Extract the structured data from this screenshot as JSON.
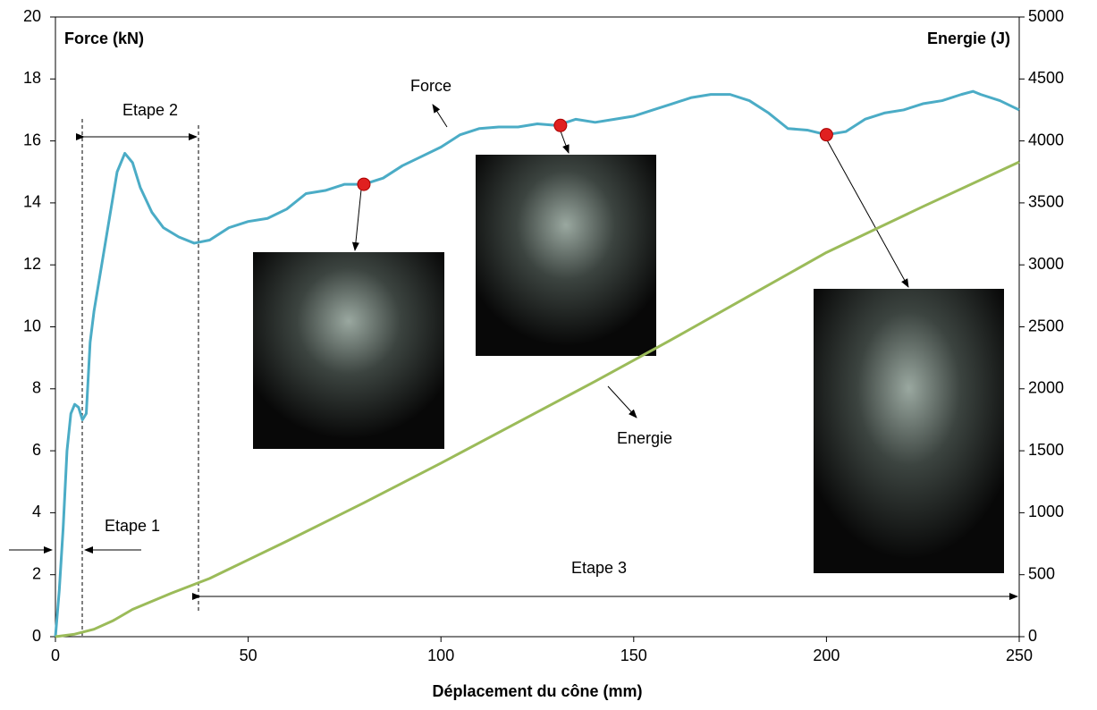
{
  "chart_data": {
    "type": "line",
    "xlabel": "Déplacement du cône (mm)",
    "ylabel": "Force (kN)",
    "y2label": "Energie (J)",
    "xlim": [
      0,
      250
    ],
    "xticks": [
      0,
      50,
      100,
      150,
      200,
      250
    ],
    "ylim": [
      0,
      20
    ],
    "yticks": [
      0,
      2,
      4,
      6,
      8,
      10,
      12,
      14,
      16,
      18,
      20
    ],
    "y2lim": [
      0,
      5000
    ],
    "y2ticks": [
      0,
      500,
      1000,
      1500,
      2000,
      2500,
      3000,
      3500,
      4000,
      4500,
      5000
    ],
    "series": [
      {
        "name": "Force",
        "color": "#4bacc6",
        "axis": "y",
        "x": [
          0,
          1,
          2,
          3,
          4,
          5,
          6,
          7,
          8,
          9,
          10,
          12,
          14,
          16,
          18,
          20,
          22,
          25,
          28,
          32,
          36,
          40,
          45,
          50,
          55,
          60,
          65,
          70,
          75,
          80,
          85,
          90,
          95,
          100,
          105,
          110,
          115,
          120,
          125,
          130,
          135,
          140,
          145,
          150,
          155,
          160,
          165,
          170,
          175,
          180,
          185,
          190,
          195,
          200,
          205,
          210,
          215,
          220,
          225,
          230,
          235,
          238,
          240,
          245,
          250
        ],
        "values": [
          0,
          1.5,
          3.5,
          6,
          7.2,
          7.5,
          7.4,
          7.0,
          7.2,
          9.5,
          10.5,
          12,
          13.5,
          15,
          15.6,
          15.3,
          14.5,
          13.7,
          13.2,
          12.9,
          12.7,
          12.8,
          13.2,
          13.4,
          13.5,
          13.8,
          14.3,
          14.4,
          14.6,
          14.6,
          14.8,
          15.2,
          15.5,
          15.8,
          16.2,
          16.4,
          16.45,
          16.45,
          16.55,
          16.5,
          16.7,
          16.6,
          16.7,
          16.8,
          17.0,
          17.2,
          17.4,
          17.5,
          17.5,
          17.3,
          16.9,
          16.4,
          16.35,
          16.2,
          16.3,
          16.7,
          16.9,
          17.0,
          17.2,
          17.3,
          17.5,
          17.6,
          17.5,
          17.3,
          17.0
        ]
      },
      {
        "name": "Energie",
        "color": "#9bbb59",
        "axis": "y2",
        "x": [
          0,
          5,
          10,
          15,
          20,
          30,
          40,
          50,
          60,
          80,
          100,
          120,
          140,
          160,
          180,
          200,
          225,
          250
        ],
        "values": [
          0,
          20,
          60,
          130,
          220,
          350,
          470,
          620,
          770,
          1080,
          1400,
          1730,
          2060,
          2400,
          2750,
          3100,
          3470,
          3830
        ]
      }
    ],
    "highlight_points": {
      "color": "#e02020",
      "x": [
        80,
        131,
        200
      ],
      "values": [
        14.6,
        16.5,
        16.2
      ]
    },
    "annotations": [
      "Etape 1",
      "Etape 2",
      "Etape 3"
    ]
  }
}
